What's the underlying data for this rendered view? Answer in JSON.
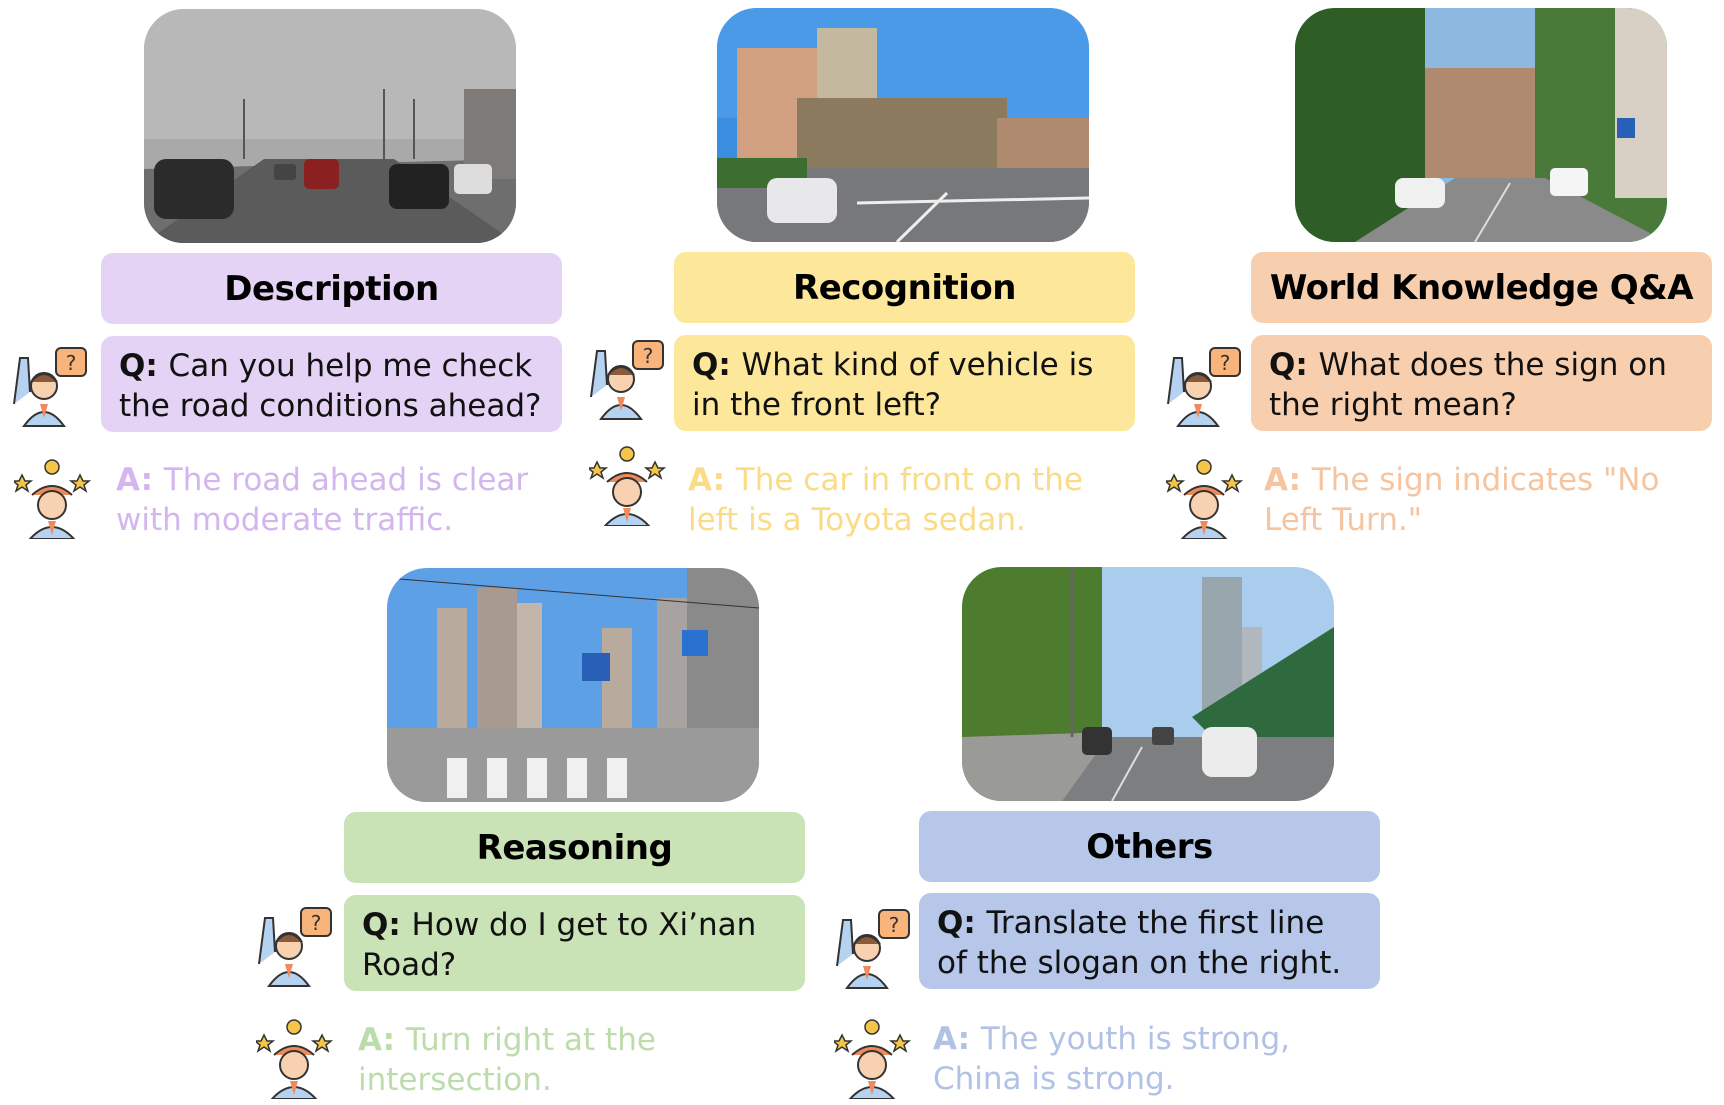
{
  "panels": [
    {
      "id": "description",
      "title": "Description",
      "q_prefix": "Q:",
      "question": "Can you help me check the road conditions ahead?",
      "a_prefix": "A:",
      "answer": "The road ahead is clear with moderate traffic.",
      "colors": {
        "box": "#e5d3f5",
        "answer": "#d3b6ee"
      }
    },
    {
      "id": "recognition",
      "title": "Recognition",
      "q_prefix": "Q:",
      "question": "What kind of vehicle is in the front left?",
      "a_prefix": "A:",
      "answer": "The car in front on the left is a Toyota sedan.",
      "colors": {
        "box": "#fde79a",
        "answer": "#fbdc86"
      }
    },
    {
      "id": "world-knowledge",
      "title": "World Knowledge Q&A",
      "q_prefix": "Q:",
      "question": "What does the sign on the right mean?",
      "a_prefix": "A:",
      "answer": "The sign indicates \"No Left Turn.\"",
      "colors": {
        "box": "#f8cfae",
        "answer": "#f6c49e"
      }
    },
    {
      "id": "reasoning",
      "title": "Reasoning",
      "q_prefix": "Q:",
      "question": "How do I get to Xi’nan Road?",
      "a_prefix": "A:",
      "answer": "Turn right at the intersection.",
      "colors": {
        "box": "#c9e2b6",
        "answer": "#bcdcaa"
      }
    },
    {
      "id": "others",
      "title": "Others",
      "q_prefix": "Q:",
      "question": "Translate the first line of the slogan on the right.",
      "a_prefix": "A:",
      "answer": "The youth is strong, China is strong.",
      "colors": {
        "box": "#b7c7e9",
        "answer": "#b2c2e6"
      }
    }
  ]
}
